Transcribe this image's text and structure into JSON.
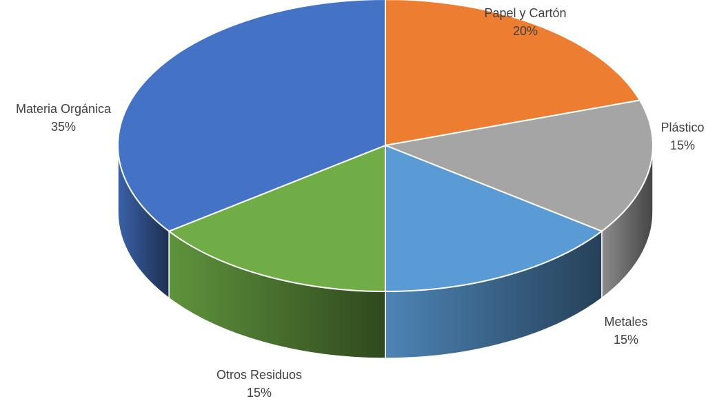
{
  "chart_data": {
    "type": "pie",
    "variant": "3d",
    "title": "",
    "start_angle_deg": 0,
    "direction": "clockwise",
    "slices": [
      {
        "name": "Papel y Cartón",
        "value": 20,
        "label": "20%",
        "color": "#ED7D31"
      },
      {
        "name": "Plástico",
        "value": 15,
        "label": "15%",
        "color": "#A5A5A5"
      },
      {
        "name": "Metales",
        "value": 15,
        "label": "15%",
        "color": "#5B9BD5"
      },
      {
        "name": "Otros Residuos",
        "value": 15,
        "label": "15%",
        "color": "#70AD47"
      },
      {
        "name": "Materia Orgánica",
        "value": 35,
        "label": "35%",
        "color": "#4472C4"
      }
    ]
  }
}
